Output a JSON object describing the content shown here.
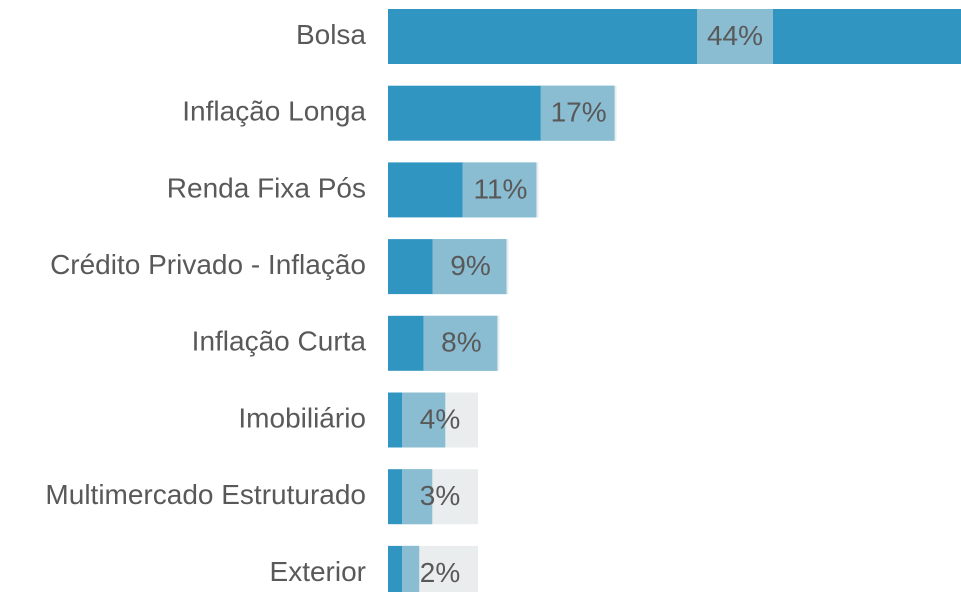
{
  "chart_data": {
    "type": "barh",
    "categories": [
      "Bolsa",
      "Inflação Longa",
      "Renda Fixa Pós",
      "Crédito Privado - Inflação",
      "Inflação Curta",
      "Imobiliário",
      "Multimercado Estruturado",
      "Exterior"
    ],
    "values": [
      44,
      17.4,
      11.4,
      9.1,
      8.4,
      4.4,
      3.4,
      2.4
    ],
    "value_labels": [
      "44%",
      "17%",
      "11%",
      "9%",
      "8%",
      "4%",
      "3%",
      "2%"
    ],
    "color": "#3096c1",
    "xlim": [
      0,
      44
    ]
  }
}
